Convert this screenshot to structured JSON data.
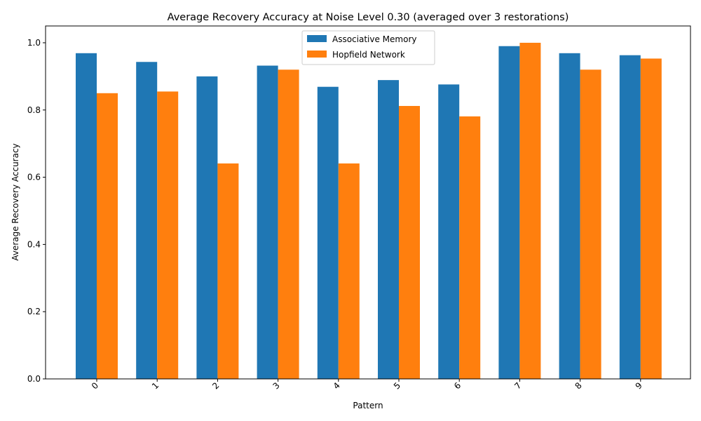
{
  "chart_data": {
    "type": "bar",
    "title": "Average Recovery Accuracy at Noise Level 0.30 (averaged over 3 restorations)",
    "xlabel": "Pattern",
    "ylabel": "Average Recovery Accuracy",
    "categories": [
      "0",
      "1",
      "2",
      "3",
      "4",
      "5",
      "6",
      "7",
      "8",
      "9"
    ],
    "ylim": [
      0,
      1.05
    ],
    "yticks": [
      "0.0",
      "0.2",
      "0.4",
      "0.6",
      "0.8",
      "1.0"
    ],
    "ytick_values": [
      0,
      0.2,
      0.4,
      0.6,
      0.8,
      1.0
    ],
    "legend_position": "upper-center",
    "grid": false,
    "series": [
      {
        "name": "Associative Memory",
        "color": "#1f77b4",
        "values": [
          0.969,
          0.943,
          0.9,
          0.932,
          0.869,
          0.889,
          0.876,
          0.99,
          0.969,
          0.963
        ]
      },
      {
        "name": "Hopfield Network",
        "color": "#ff7f0e",
        "values": [
          0.85,
          0.855,
          0.641,
          0.92,
          0.641,
          0.812,
          0.781,
          1.0,
          0.92,
          0.953
        ]
      }
    ]
  }
}
